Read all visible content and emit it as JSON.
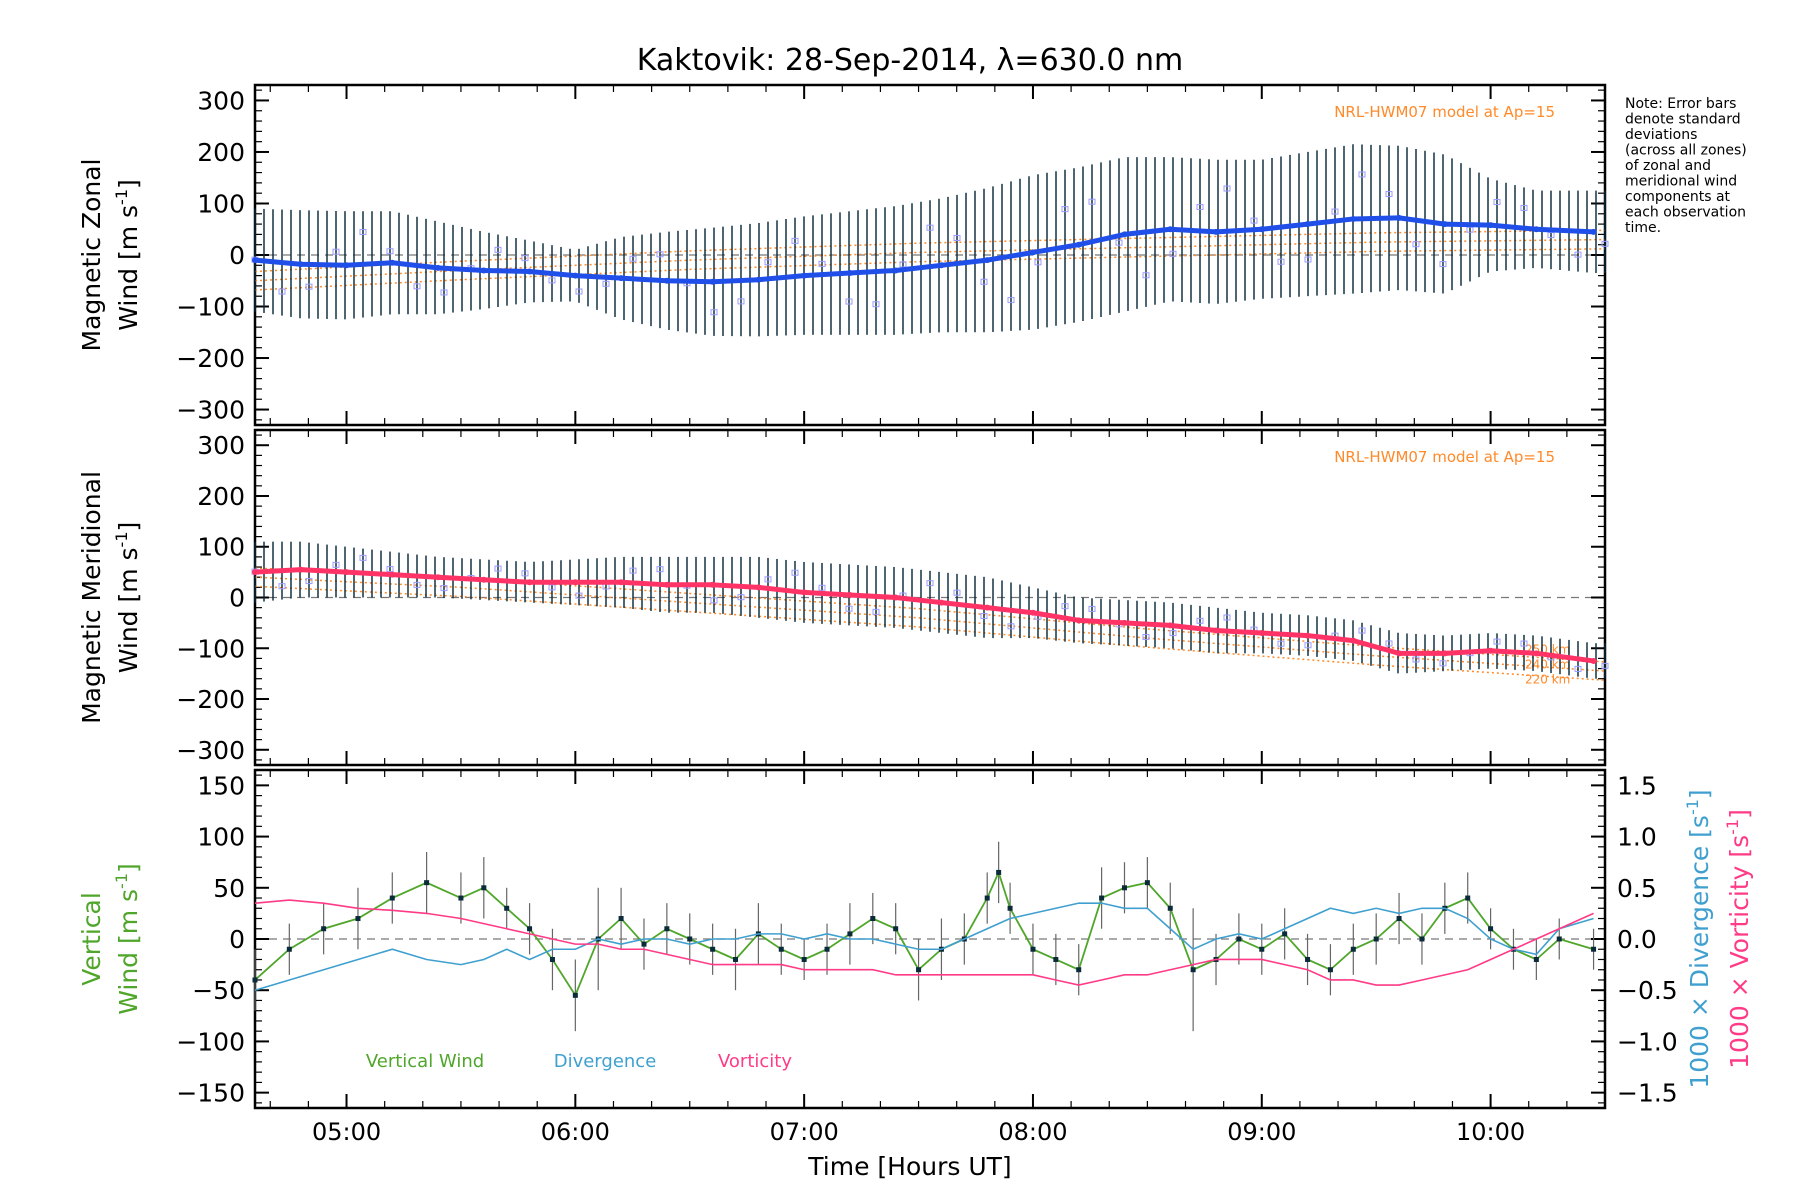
{
  "chart_data": {
    "type": "line",
    "title": "Kaktovik: 28-Sep-2014, λ=630.0 nm",
    "xlabel": "Time [Hours UT]",
    "xlim": [
      4.6,
      10.5
    ],
    "xticks": [
      {
        "value": 5,
        "label": "05:00"
      },
      {
        "value": 6,
        "label": "06:00"
      },
      {
        "value": 7,
        "label": "07:00"
      },
      {
        "value": 8,
        "label": "08:00"
      },
      {
        "value": 9,
        "label": "09:00"
      },
      {
        "value": 10,
        "label": "10:00"
      }
    ],
    "note_lines": [
      "Note: Error bars",
      "denote standard",
      "deviations",
      "(across all zones)",
      "of zonal and",
      "meridional wind",
      "components at",
      "each observation",
      "time."
    ],
    "colors": {
      "zonal": "#1f4fe8",
      "meridional": "#ff3366",
      "vertical": "#4fa62a",
      "divergence": "#3fa0d0",
      "vorticity": "#ff3a86",
      "model": "#ff8a2a",
      "errorbar": "#0b2b3b",
      "scatter": "#9b9bff"
    },
    "panels": [
      {
        "id": "zonal",
        "ylabel_line1": "Magnetic Zonal",
        "ylabel_line2": "Wind [m s",
        "ylabel_sup": "-1",
        "ylabel_close": "]",
        "ylim": [
          -330,
          330
        ],
        "yticks": [
          300,
          200,
          100,
          0,
          -100,
          -200,
          -300
        ],
        "model_label": "NRL-HWM07 model at Ap=15",
        "series": {
          "name": "",
          "times": [
            4.6,
            4.8,
            5.0,
            5.2,
            5.4,
            5.6,
            5.8,
            6.0,
            6.2,
            6.4,
            6.6,
            6.8,
            7.0,
            7.2,
            7.4,
            7.6,
            7.8,
            8.0,
            8.2,
            8.4,
            8.6,
            8.8,
            9.0,
            9.2,
            9.4,
            9.6,
            9.8,
            10.0,
            10.2,
            10.45
          ],
          "values": [
            -10,
            -18,
            -20,
            -15,
            -25,
            -30,
            -32,
            -40,
            -45,
            -50,
            -52,
            -48,
            -40,
            -35,
            -30,
            -20,
            -10,
            5,
            20,
            40,
            50,
            45,
            50,
            60,
            70,
            72,
            60,
            58,
            50,
            45
          ],
          "error": [
            100,
            105,
            105,
            100,
            90,
            75,
            60,
            50,
            80,
            95,
            105,
            110,
            115,
            120,
            125,
            130,
            140,
            150,
            150,
            150,
            140,
            140,
            135,
            140,
            145,
            140,
            135,
            90,
            75,
            80
          ]
        },
        "model": {
          "times": [
            4.6,
            5.5,
            6.5,
            7.5,
            8.5,
            9.5,
            10.5
          ],
          "values": [
            -50,
            -30,
            -10,
            5,
            15,
            25,
            30
          ]
        }
      },
      {
        "id": "meridional",
        "ylabel_line1": "Magnetic Meridional",
        "ylabel_line2": "Wind [m s",
        "ylabel_sup": "-1",
        "ylabel_close": "]",
        "ylim": [
          -330,
          330
        ],
        "yticks": [
          300,
          200,
          100,
          0,
          -100,
          -200,
          -300
        ],
        "model_label": "NRL-HWM07 model at Ap=15",
        "model_height_labels": [
          "250 km",
          "240 km",
          "220 km"
        ],
        "series": {
          "name": "",
          "times": [
            4.6,
            4.8,
            5.0,
            5.2,
            5.4,
            5.6,
            5.8,
            6.0,
            6.2,
            6.4,
            6.6,
            6.8,
            7.0,
            7.2,
            7.4,
            7.6,
            7.8,
            8.0,
            8.2,
            8.4,
            8.6,
            8.8,
            9.0,
            9.2,
            9.4,
            9.6,
            9.8,
            10.0,
            10.2,
            10.45
          ],
          "values": [
            50,
            55,
            50,
            45,
            40,
            35,
            30,
            30,
            30,
            25,
            25,
            20,
            10,
            5,
            0,
            -10,
            -20,
            -30,
            -45,
            -50,
            -55,
            -65,
            -70,
            -75,
            -85,
            -110,
            -110,
            -105,
            -110,
            -125
          ],
          "error": [
            60,
            55,
            50,
            45,
            40,
            40,
            40,
            45,
            50,
            55,
            55,
            60,
            60,
            60,
            60,
            60,
            60,
            50,
            45,
            45,
            45,
            45,
            40,
            40,
            40,
            40,
            35,
            35,
            35,
            35
          ]
        },
        "model": {
          "times": [
            4.6,
            5.5,
            6.5,
            7.5,
            8.5,
            9.5,
            10.5
          ],
          "values": [
            40,
            20,
            -10,
            -40,
            -80,
            -115,
            -145
          ]
        }
      },
      {
        "id": "vertical",
        "ylabel_line1": "Vertical",
        "ylabel_line2": "Wind [m s",
        "ylabel_sup": "-1",
        "ylabel_close": "]",
        "ylim": [
          -165,
          165
        ],
        "yticks": [
          150,
          100,
          50,
          0,
          -50,
          -100,
          -150
        ],
        "right_axis": {
          "ylim": [
            -1.65,
            1.65
          ],
          "yticks": [
            1.5,
            1.0,
            0.5,
            0.0,
            -0.5,
            -1.0,
            -1.5
          ],
          "labels": [
            "1.5",
            "1.0",
            "0.5",
            "0.0",
            "-0.5",
            "-1.0",
            "-1.5"
          ],
          "label_div": "1000 × Divergence [s",
          "label_vor": "1000 × Vorticity [s",
          "label_sup": "-1",
          "label_close": "]"
        },
        "legend": [
          "Vertical Wind",
          "Divergence",
          "Vorticity"
        ],
        "series": [
          {
            "name": "Vertical Wind",
            "times": [
              4.6,
              4.75,
              4.9,
              5.05,
              5.2,
              5.35,
              5.5,
              5.6,
              5.7,
              5.8,
              5.9,
              6.0,
              6.1,
              6.2,
              6.3,
              6.4,
              6.5,
              6.6,
              6.7,
              6.8,
              6.9,
              7.0,
              7.1,
              7.2,
              7.3,
              7.4,
              7.5,
              7.6,
              7.7,
              7.8,
              7.85,
              7.9,
              8.0,
              8.1,
              8.2,
              8.3,
              8.4,
              8.5,
              8.6,
              8.7,
              8.8,
              8.9,
              9.0,
              9.1,
              9.2,
              9.3,
              9.4,
              9.5,
              9.6,
              9.7,
              9.8,
              9.9,
              10.0,
              10.1,
              10.2,
              10.3,
              10.45
            ],
            "values": [
              -40,
              -10,
              10,
              20,
              40,
              55,
              40,
              50,
              30,
              10,
              -20,
              -55,
              0,
              20,
              -5,
              10,
              0,
              -10,
              -20,
              5,
              -10,
              -20,
              -10,
              5,
              20,
              10,
              -30,
              -10,
              0,
              40,
              65,
              30,
              -10,
              -20,
              -30,
              40,
              50,
              55,
              30,
              -30,
              -20,
              0,
              -10,
              5,
              -20,
              -30,
              -10,
              0,
              20,
              0,
              30,
              40,
              10,
              -10,
              -20,
              0,
              -10
            ],
            "error": [
              30,
              25,
              25,
              30,
              25,
              30,
              25,
              30,
              20,
              25,
              30,
              35,
              50,
              30,
              25,
              25,
              25,
              25,
              30,
              30,
              25,
              20,
              25,
              30,
              25,
              25,
              30,
              30,
              25,
              25,
              30,
              25,
              25,
              25,
              25,
              30,
              25,
              25,
              25,
              60,
              25,
              25,
              25,
              25,
              25,
              25,
              25,
              25,
              25,
              25,
              25,
              25,
              20,
              20,
              20,
              20,
              20
            ]
          },
          {
            "name": "Divergence",
            "times": [
              4.6,
              4.75,
              4.9,
              5.05,
              5.2,
              5.35,
              5.5,
              5.6,
              5.7,
              5.8,
              5.9,
              6.0,
              6.1,
              6.2,
              6.3,
              6.4,
              6.5,
              6.6,
              6.7,
              6.8,
              6.9,
              7.0,
              7.1,
              7.2,
              7.3,
              7.4,
              7.5,
              7.6,
              7.7,
              7.8,
              7.9,
              8.0,
              8.1,
              8.2,
              8.3,
              8.4,
              8.5,
              8.6,
              8.7,
              8.8,
              8.9,
              9.0,
              9.1,
              9.2,
              9.3,
              9.4,
              9.5,
              9.6,
              9.7,
              9.8,
              9.9,
              10.0,
              10.1,
              10.2,
              10.3,
              10.45
            ],
            "values": [
              -0.5,
              -0.4,
              -0.3,
              -0.2,
              -0.1,
              -0.2,
              -0.25,
              -0.2,
              -0.1,
              -0.2,
              -0.1,
              -0.1,
              0.0,
              -0.05,
              0.0,
              0.0,
              -0.05,
              0.0,
              0.0,
              0.05,
              0.05,
              0.0,
              0.05,
              0.0,
              0.0,
              -0.05,
              -0.1,
              -0.1,
              0.0,
              0.1,
              0.2,
              0.25,
              0.3,
              0.35,
              0.35,
              0.3,
              0.3,
              0.1,
              -0.1,
              0.0,
              0.05,
              0.0,
              0.1,
              0.2,
              0.3,
              0.25,
              0.3,
              0.25,
              0.3,
              0.3,
              0.2,
              0.0,
              -0.1,
              -0.15,
              0.1,
              0.2
            ],
            "axis": "right"
          },
          {
            "name": "Vorticity",
            "times": [
              4.6,
              4.75,
              4.9,
              5.05,
              5.2,
              5.35,
              5.5,
              5.6,
              5.7,
              5.8,
              5.9,
              6.0,
              6.1,
              6.2,
              6.3,
              6.4,
              6.5,
              6.6,
              6.7,
              6.8,
              6.9,
              7.0,
              7.1,
              7.2,
              7.3,
              7.4,
              7.5,
              7.6,
              7.7,
              7.8,
              7.9,
              8.0,
              8.1,
              8.2,
              8.3,
              8.4,
              8.5,
              8.6,
              8.7,
              8.8,
              8.9,
              9.0,
              9.1,
              9.2,
              9.3,
              9.4,
              9.5,
              9.6,
              9.7,
              9.8,
              9.9,
              10.0,
              10.1,
              10.2,
              10.3,
              10.45
            ],
            "values": [
              0.35,
              0.38,
              0.35,
              0.3,
              0.28,
              0.25,
              0.2,
              0.15,
              0.1,
              0.05,
              0.0,
              -0.05,
              -0.05,
              -0.1,
              -0.1,
              -0.15,
              -0.2,
              -0.25,
              -0.25,
              -0.25,
              -0.25,
              -0.3,
              -0.3,
              -0.3,
              -0.3,
              -0.35,
              -0.35,
              -0.35,
              -0.35,
              -0.35,
              -0.35,
              -0.35,
              -0.4,
              -0.45,
              -0.4,
              -0.35,
              -0.35,
              -0.3,
              -0.25,
              -0.2,
              -0.2,
              -0.2,
              -0.25,
              -0.3,
              -0.4,
              -0.4,
              -0.45,
              -0.45,
              -0.4,
              -0.35,
              -0.3,
              -0.2,
              -0.1,
              0.0,
              0.1,
              0.25
            ],
            "axis": "right"
          }
        ]
      }
    ]
  }
}
